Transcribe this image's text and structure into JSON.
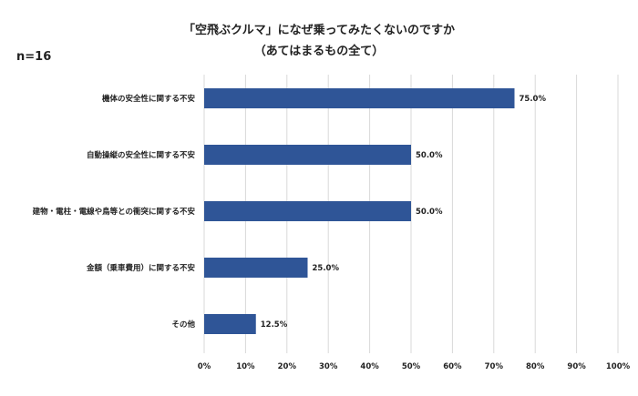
{
  "chart": {
    "title_line1": "「空飛ぶクルマ」になぜ乗ってみたくないのですか",
    "title_line2": "（あてはまるもの全て）",
    "sample_size": "n=16"
  },
  "colors": {
    "bar": "#2f5597",
    "grid": "#d9d9d9",
    "text": "#222222"
  },
  "chart_data": {
    "type": "bar",
    "orientation": "horizontal",
    "title": "「空飛ぶクルマ」になぜ乗ってみたくないのですか（あてはまるもの全て）",
    "categories": [
      "機体の安全性に関する不安",
      "自動操縦の安全性に関する不安",
      "建物・電柱・電線や鳥等との衝突に関する不安",
      "金額（乗車費用）に関する不安",
      "その他"
    ],
    "values": [
      75.0,
      50.0,
      50.0,
      25.0,
      12.5
    ],
    "value_labels": [
      "75.0%",
      "50.0%",
      "50.0%",
      "25.0%",
      "12.5%"
    ],
    "xlim": [
      0,
      100
    ],
    "x_ticks": [
      "0%",
      "10%",
      "20%",
      "30%",
      "40%",
      "50%",
      "60%",
      "70%",
      "80%",
      "90%",
      "100%"
    ],
    "grid": true
  }
}
